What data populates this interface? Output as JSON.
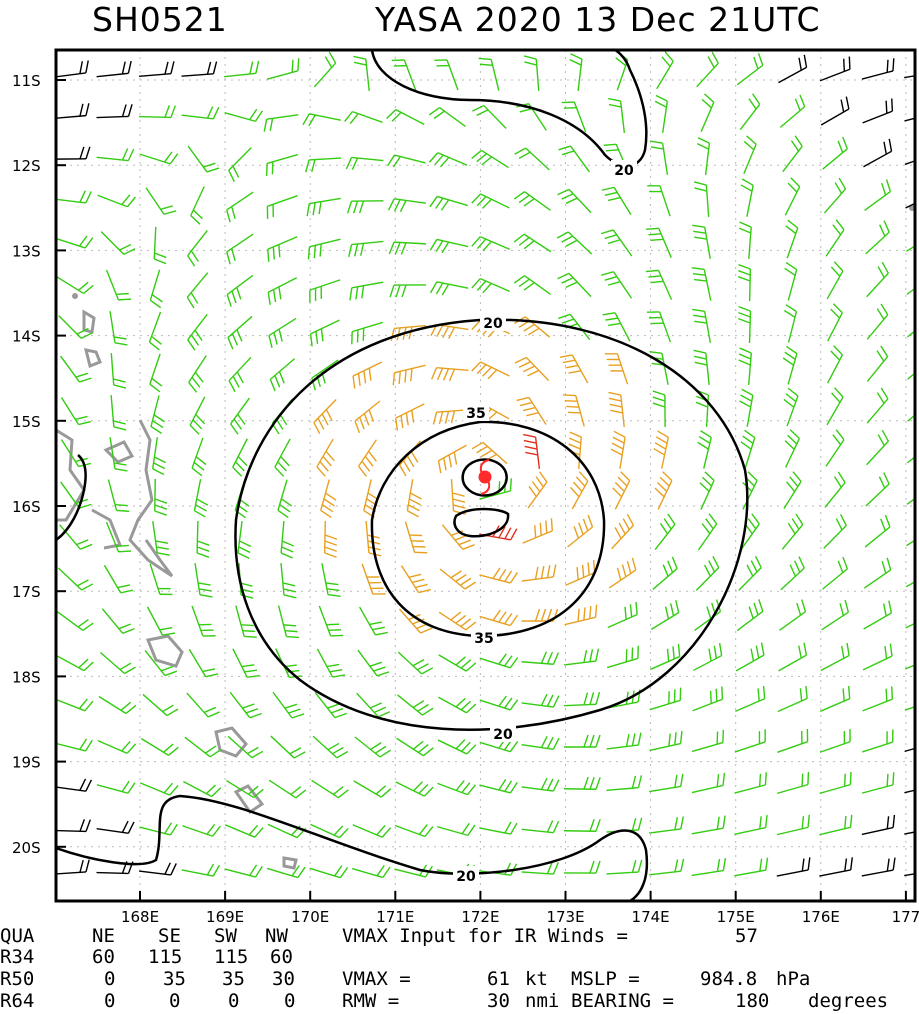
{
  "header": {
    "storm_id": "SH0521",
    "storm_info": "YASA 2020 13 Dec 21UTC"
  },
  "map": {
    "lat_labels": [
      "11S",
      "12S",
      "13S",
      "14S",
      "15S",
      "16S",
      "17S",
      "18S",
      "19S",
      "20S"
    ],
    "lon_labels": [
      "168E",
      "169E",
      "170E",
      "171E",
      "172E",
      "173E",
      "174E",
      "175E",
      "176E",
      "177"
    ],
    "contour_labels": [
      "20",
      "20",
      "35",
      "35",
      "20",
      "20"
    ],
    "colors": {
      "barb_weak": "#000000",
      "barb_34kt": "#33cc11",
      "barb_50kt": "#e8a020",
      "barb_64kt": "#e03020",
      "contour": "#000000",
      "coast": "#999999",
      "center": "#ff2a2a"
    },
    "storm_center_icon": "cyclone-symbol-icon"
  },
  "summary": {
    "quadrant_header": [
      "QUA",
      "NE",
      "SE",
      "SW",
      "NW"
    ],
    "rows": [
      {
        "label": "R34",
        "values": [
          "60",
          "115",
          "115",
          "60"
        ]
      },
      {
        "label": "R50",
        "values": [
          "0",
          "35",
          "35",
          "30"
        ]
      },
      {
        "label": "R64",
        "values": [
          "0",
          "0",
          "0",
          "0"
        ]
      }
    ],
    "vmax_input_text": "VMAX Input for IR Winds =",
    "vmax_input_value": "57",
    "vmax_text": "VMAX =",
    "vmax_value": "61",
    "vmax_unit": "kt",
    "mslp_text": "MSLP =",
    "mslp_value": "984.8",
    "mslp_unit": "hPa",
    "rmw_text": "RMW =",
    "rmw_value": "30",
    "rmw_unit": "nmi",
    "bearing_text": "BEARING =",
    "bearing_value": "180",
    "bearing_unit": "degrees"
  }
}
